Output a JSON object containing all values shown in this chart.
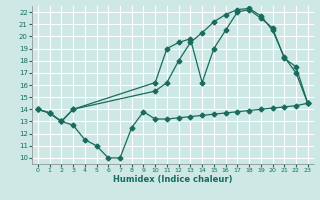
{
  "xlabel": "Humidex (Indice chaleur)",
  "bg_color": "#cde8e5",
  "grid_color": "#ffffff",
  "line_color": "#1a6b5e",
  "xlim": [
    -0.5,
    23.5
  ],
  "ylim": [
    9.5,
    22.5
  ],
  "yticks": [
    10,
    11,
    12,
    13,
    14,
    15,
    16,
    17,
    18,
    19,
    20,
    21,
    22
  ],
  "xticks": [
    0,
    1,
    2,
    3,
    4,
    5,
    6,
    7,
    8,
    9,
    10,
    11,
    12,
    13,
    14,
    15,
    16,
    17,
    18,
    19,
    20,
    21,
    22,
    23
  ],
  "line1_x": [
    0,
    1,
    2,
    3,
    4,
    5,
    6,
    7,
    8,
    9,
    10,
    11,
    12,
    13,
    14,
    15,
    16,
    17,
    18,
    19,
    20,
    21,
    22,
    23
  ],
  "line1_y": [
    14.0,
    13.7,
    13.0,
    12.7,
    11.5,
    11.0,
    10.0,
    10.0,
    12.5,
    13.8,
    13.2,
    13.2,
    13.3,
    13.4,
    13.5,
    13.6,
    13.7,
    13.8,
    13.9,
    14.0,
    14.1,
    14.2,
    14.3,
    14.5
  ],
  "line2_x": [
    0,
    1,
    2,
    3,
    10,
    11,
    12,
    13,
    14,
    15,
    16,
    17,
    18,
    19,
    20,
    21,
    22,
    23
  ],
  "line2_y": [
    14.0,
    13.7,
    13.0,
    14.0,
    15.5,
    16.2,
    18.0,
    19.5,
    20.3,
    21.2,
    21.8,
    22.2,
    22.3,
    21.7,
    20.5,
    18.3,
    17.0,
    14.5
  ],
  "line3_x": [
    0,
    1,
    2,
    3,
    10,
    11,
    12,
    13,
    14,
    15,
    16,
    17,
    18,
    19,
    20,
    21,
    22,
    23
  ],
  "line3_y": [
    14.0,
    13.7,
    13.0,
    14.0,
    16.2,
    19.0,
    19.5,
    19.8,
    16.2,
    19.0,
    20.5,
    22.0,
    22.2,
    21.5,
    20.7,
    18.2,
    17.5,
    14.5
  ]
}
